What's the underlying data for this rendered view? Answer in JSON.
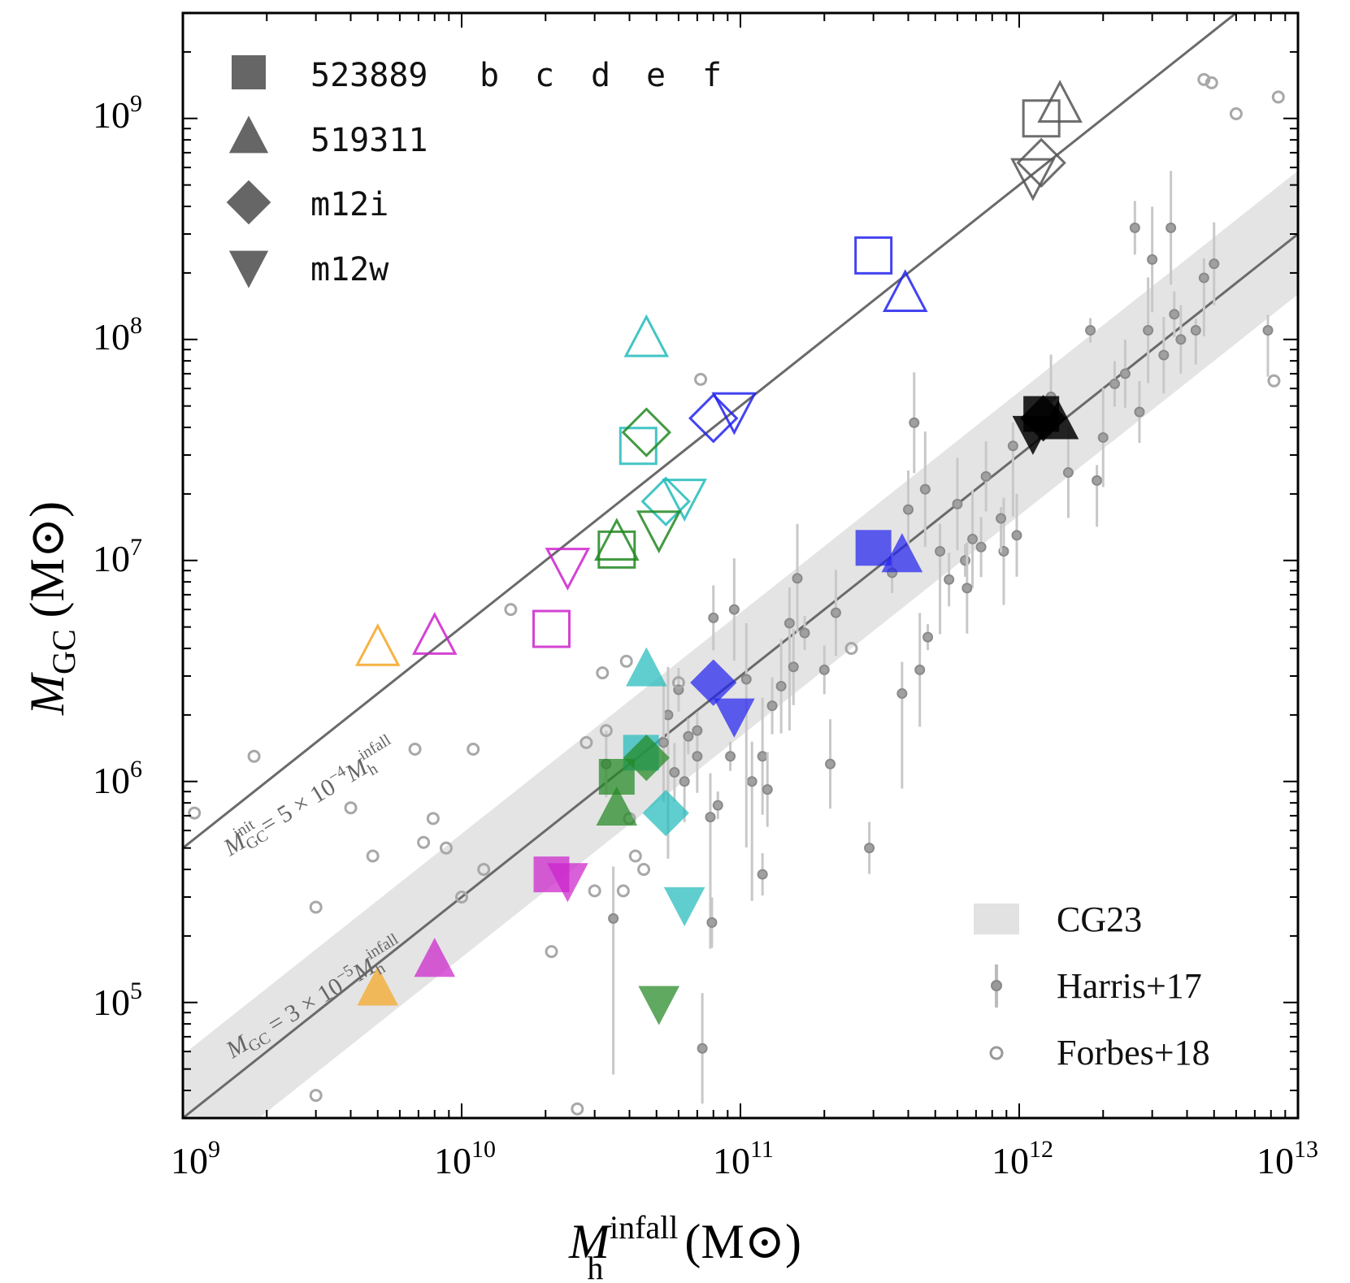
{
  "chart_data": {
    "type": "scatter",
    "xscale": "log",
    "yscale": "log",
    "xlim": [
      1000000000.0,
      10000000000000.0
    ],
    "ylim": [
      30000.0,
      3000000000.0
    ],
    "xlabel": {
      "main": "M",
      "sup": "infall",
      "sub": "h",
      "unit": "(M⊙)"
    },
    "ylabel": {
      "main": "M",
      "sub": "GC",
      "unit": "(M⊙)"
    },
    "x_ticks": [
      {
        "value": 1000000000.0,
        "base": "10",
        "exp": "9"
      },
      {
        "value": 10000000000.0,
        "base": "10",
        "exp": "10"
      },
      {
        "value": 100000000000.0,
        "base": "10",
        "exp": "11"
      },
      {
        "value": 1000000000000.0,
        "base": "10",
        "exp": "12"
      },
      {
        "value": 10000000000000.0,
        "base": "10",
        "exp": "13"
      }
    ],
    "y_ticks": [
      {
        "value": 100000.0,
        "base": "10",
        "exp": "5"
      },
      {
        "value": 1000000.0,
        "base": "10",
        "exp": "6"
      },
      {
        "value": 10000000.0,
        "base": "10",
        "exp": "7"
      },
      {
        "value": 100000000.0,
        "base": "10",
        "exp": "8"
      },
      {
        "value": 1000000000.0,
        "base": "10",
        "exp": "9"
      }
    ],
    "relations": [
      {
        "name": "initial",
        "coefficient": 0.0005,
        "label": {
          "lhs": "M",
          "lhs_sub": "GC",
          "lhs_sup": "init",
          "rhs": " = 5 × 10",
          "exp": "−4",
          "var": "M",
          "var_sub": "h",
          "var_sup": "infall"
        }
      },
      {
        "name": "present",
        "coefficient": 3e-05,
        "label": {
          "lhs": "M",
          "lhs_sub": "GC",
          "lhs_sup": "",
          "rhs": " = 3 × 10",
          "exp": "−5",
          "var": "M",
          "var_sub": "h",
          "var_sup": "infall"
        }
      }
    ],
    "band": {
      "name": "CG23",
      "upper_coefficient": 5.8e-05,
      "lower_coefficient": 1.6e-05
    },
    "colors": {
      "a": "#555555",
      "b": "#2222ee",
      "c": "#22bbbb",
      "d": "#228822",
      "e": "#cc22cc",
      "f": "#f5a623",
      "main": "#000000"
    },
    "points": [
      {
        "halo": "523889",
        "sat": "main",
        "shape": "square",
        "state": "initial",
        "x": 1200000000000.0,
        "y": 1000000000.0
      },
      {
        "halo": "519311",
        "sat": "main",
        "shape": "triangle",
        "state": "initial",
        "x": 1400000000000.0,
        "y": 1150000000.0
      },
      {
        "halo": "m12i",
        "sat": "main",
        "shape": "diamond",
        "state": "initial",
        "x": 1200000000000.0,
        "y": 630000000.0
      },
      {
        "halo": "m12w",
        "sat": "main",
        "shape": "invtriangle",
        "state": "initial",
        "x": 1120000000000.0,
        "y": 550000000.0
      },
      {
        "halo": "523889",
        "sat": "b",
        "shape": "square",
        "state": "initial",
        "x": 300000000000.0,
        "y": 240000000.0
      },
      {
        "halo": "519311",
        "sat": "b",
        "shape": "triangle",
        "state": "initial",
        "x": 390000000000.0,
        "y": 160000000.0
      },
      {
        "halo": "m12i",
        "sat": "b",
        "shape": "diamond",
        "state": "initial",
        "x": 80000000000.0,
        "y": 44000000.0
      },
      {
        "halo": "m12w",
        "sat": "b",
        "shape": "invtriangle",
        "state": "initial",
        "x": 95000000000.0,
        "y": 48000000.0
      },
      {
        "halo": "523889",
        "sat": "c",
        "shape": "square",
        "state": "initial",
        "x": 43000000000.0,
        "y": 33000000.0
      },
      {
        "halo": "519311",
        "sat": "c",
        "shape": "triangle",
        "state": "initial",
        "x": 46000000000.0,
        "y": 100000000.0
      },
      {
        "halo": "m12i",
        "sat": "c",
        "shape": "diamond",
        "state": "initial",
        "x": 54000000000.0,
        "y": 18500000.0
      },
      {
        "halo": "m12w",
        "sat": "c",
        "shape": "invtriangle",
        "state": "initial",
        "x": 63000000000.0,
        "y": 19500000.0
      },
      {
        "halo": "523889",
        "sat": "d",
        "shape": "square",
        "state": "initial",
        "x": 36000000000.0,
        "y": 11200000.0
      },
      {
        "halo": "519311",
        "sat": "d",
        "shape": "triangle",
        "state": "initial",
        "x": 36000000000.0,
        "y": 12000000.0
      },
      {
        "halo": "m12i",
        "sat": "d",
        "shape": "diamond",
        "state": "initial",
        "x": 46000000000.0,
        "y": 38000000.0
      },
      {
        "halo": "m12w",
        "sat": "d",
        "shape": "invtriangle",
        "state": "initial",
        "x": 51000000000.0,
        "y": 14000000.0
      },
      {
        "halo": "523889",
        "sat": "e",
        "shape": "square",
        "state": "initial",
        "x": 21000000000.0,
        "y": 4900000.0
      },
      {
        "halo": "519311",
        "sat": "e",
        "shape": "triangle",
        "state": "initial",
        "x": 8000000000.0,
        "y": 4500000.0
      },
      {
        "halo": "m12w",
        "sat": "e",
        "shape": "invtriangle",
        "state": "initial",
        "x": 24000000000.0,
        "y": 9500000.0
      },
      {
        "halo": "519311",
        "sat": "f",
        "shape": "triangle",
        "state": "initial",
        "x": 5000000000.0,
        "y": 4000000.0
      },
      {
        "halo": "523889",
        "sat": "main",
        "shape": "square",
        "state": "present",
        "x": 1200000000000.0,
        "y": 46000000.0
      },
      {
        "halo": "519311",
        "sat": "main",
        "shape": "triangle",
        "state": "present",
        "x": 1380000000000.0,
        "y": 42000000.0
      },
      {
        "halo": "m12i",
        "sat": "main",
        "shape": "diamond",
        "state": "present",
        "x": 1220000000000.0,
        "y": 44000000.0
      },
      {
        "halo": "m12w",
        "sat": "main",
        "shape": "invtriangle",
        "state": "present",
        "x": 1120000000000.0,
        "y": 38000000.0
      },
      {
        "halo": "523889",
        "sat": "b",
        "shape": "square",
        "state": "present",
        "x": 300000000000.0,
        "y": 11400000.0
      },
      {
        "halo": "519311",
        "sat": "b",
        "shape": "triangle",
        "state": "present",
        "x": 380000000000.0,
        "y": 10500000.0
      },
      {
        "halo": "m12i",
        "sat": "b",
        "shape": "diamond",
        "state": "present",
        "x": 80000000000.0,
        "y": 2800000.0
      },
      {
        "halo": "m12w",
        "sat": "b",
        "shape": "invtriangle",
        "state": "present",
        "x": 95000000000.0,
        "y": 2000000.0
      },
      {
        "halo": "523889",
        "sat": "c",
        "shape": "square",
        "state": "present",
        "x": 44000000000.0,
        "y": 1350000.0
      },
      {
        "halo": "519311",
        "sat": "c",
        "shape": "triangle",
        "state": "present",
        "x": 46000000000.0,
        "y": 3200000.0
      },
      {
        "halo": "m12i",
        "sat": "c",
        "shape": "diamond",
        "state": "present",
        "x": 54000000000.0,
        "y": 720000.0
      },
      {
        "halo": "m12w",
        "sat": "c",
        "shape": "invtriangle",
        "state": "present",
        "x": 63000000000.0,
        "y": 280000.0
      },
      {
        "halo": "523889",
        "sat": "d",
        "shape": "square",
        "state": "present",
        "x": 36000000000.0,
        "y": 1050000.0
      },
      {
        "halo": "519311",
        "sat": "d",
        "shape": "triangle",
        "state": "present",
        "x": 36000000000.0,
        "y": 750000.0
      },
      {
        "halo": "m12i",
        "sat": "d",
        "shape": "diamond",
        "state": "present",
        "x": 46000000000.0,
        "y": 1280000.0
      },
      {
        "halo": "m12w",
        "sat": "d",
        "shape": "invtriangle",
        "state": "present",
        "x": 51000000000.0,
        "y": 100000.0
      },
      {
        "halo": "523889",
        "sat": "e",
        "shape": "square",
        "state": "present",
        "x": 21000000000.0,
        "y": 380000.0
      },
      {
        "halo": "519311",
        "sat": "e",
        "shape": "triangle",
        "state": "present",
        "x": 8000000000.0,
        "y": 155000.0
      },
      {
        "halo": "m12w",
        "sat": "e",
        "shape": "invtriangle",
        "state": "present",
        "x": 24000000000.0,
        "y": 360000.0
      },
      {
        "halo": "519311",
        "sat": "f",
        "shape": "triangle",
        "state": "present",
        "x": 5000000000.0,
        "y": 115000.0
      }
    ],
    "harris17": [
      [
        4300000000000.0,
        110000000.0
      ],
      [
        5000000000000.0,
        220000000.0
      ],
      [
        3600000000000.0,
        130000000.0
      ],
      [
        3000000000000.0,
        230000000.0
      ],
      [
        2400000000000.0,
        70000000.0
      ],
      [
        1900000000000.0,
        23000000.0
      ],
      [
        1500000000000.0,
        25000000.0
      ],
      [
        2600000000000.0,
        320000000.0
      ],
      [
        3500000000000.0,
        320000000.0
      ],
      [
        3300000000000.0,
        85000000.0
      ],
      [
        4600000000000.0,
        190000000.0
      ],
      [
        2000000000000.0,
        36000000.0
      ],
      [
        2700000000000.0,
        47000000.0
      ],
      [
        1800000000000.0,
        110000000.0
      ],
      [
        1300000000000.0,
        55000000.0
      ],
      [
        950000000000.0,
        33000000.0
      ],
      [
        880000000000.0,
        11000000.0
      ],
      [
        760000000000.0,
        24000000.0
      ],
      [
        640000000000.0,
        10000000.0
      ],
      [
        600000000000.0,
        18000000.0
      ],
      [
        520000000000.0,
        11000000.0
      ],
      [
        460000000000.0,
        21000000.0
      ],
      [
        400000000000.0,
        17000000.0
      ],
      [
        350000000000.0,
        8800000.0
      ],
      [
        420000000000.0,
        42000000.0
      ],
      [
        380000000000.0,
        2500000.0
      ],
      [
        470000000000.0,
        4500000.0
      ],
      [
        220000000000.0,
        5800000.0
      ],
      [
        200000000000.0,
        3200000.0
      ],
      [
        160000000000.0,
        8300000.0
      ],
      [
        150000000000.0,
        5200000.0
      ],
      [
        170000000000.0,
        4700000.0
      ],
      [
        140000000000.0,
        2700000.0
      ],
      [
        130000000000.0,
        2200000.0
      ],
      [
        120000000000.0,
        1300000.0
      ],
      [
        110000000000.0,
        1000000.0
      ],
      [
        120000000000.0,
        380000.0
      ],
      [
        95000000000.0,
        6000000.0
      ],
      [
        80000000000.0,
        5500000.0
      ],
      [
        83000000000.0,
        780000.0
      ],
      [
        78000000000.0,
        690000.0
      ],
      [
        79000000000.0,
        230000.0
      ],
      [
        73000000000.0,
        62000.0
      ],
      [
        70000000000.0,
        1300000.0
      ],
      [
        65000000000.0,
        1600000.0
      ],
      [
        55000000000.0,
        2000000.0
      ],
      [
        58000000000.0,
        1100000.0
      ],
      [
        53000000000.0,
        1500000.0
      ],
      [
        63000000000.0,
        1000000.0
      ],
      [
        60000000000.0,
        2600000.0
      ],
      [
        35000000000.0,
        240000.0
      ],
      [
        33000000000.0,
        1200000.0
      ],
      [
        92000000000.0,
        1300000.0
      ],
      [
        210000000000.0,
        1200000.0
      ],
      [
        290000000000.0,
        500000.0
      ],
      [
        105000000000.0,
        2900000.0
      ],
      [
        125000000000.0,
        920000.0
      ],
      [
        70000000000.0,
        1700000.0
      ],
      [
        680000000000.0,
        12500000.0
      ],
      [
        730000000000.0,
        11500000.0
      ],
      [
        860000000000.0,
        15500000.0
      ],
      [
        980000000000.0,
        13000000.0
      ],
      [
        2200000000000.0,
        63000000.0
      ],
      [
        2900000000000.0,
        110000000.0
      ],
      [
        3800000000000.0,
        100000000.0
      ],
      [
        7800000000000.0,
        110000000.0
      ],
      [
        650000000000.0,
        7500000.0
      ],
      [
        560000000000.0,
        8200000.0
      ],
      [
        440000000000.0,
        3200000.0
      ],
      [
        155000000000.0,
        3300000.0
      ]
    ],
    "forbes18": [
      [
        1100000000.0,
        720000.0
      ],
      [
        1800000000.0,
        1300000.0
      ],
      [
        3000000000.0,
        270000.0
      ],
      [
        3000000000.0,
        38000.0
      ],
      [
        4000000000.0,
        760000.0
      ],
      [
        4800000000.0,
        460000.0
      ],
      [
        6800000000.0,
        1400000.0
      ],
      [
        7300000000.0,
        530000.0
      ],
      [
        7900000000.0,
        680000.0
      ],
      [
        8800000000.0,
        500000.0
      ],
      [
        10000000000.0,
        300000.0
      ],
      [
        11000000000.0,
        1400000.0
      ],
      [
        12000000000.0,
        400000.0
      ],
      [
        15000000000.0,
        6000000.0
      ],
      [
        21000000000.0,
        170000.0
      ],
      [
        26000000000.0,
        33000.0
      ],
      [
        28000000000.0,
        1500000.0
      ],
      [
        30000000000.0,
        320000.0
      ],
      [
        32000000000.0,
        3100000.0
      ],
      [
        38000000000.0,
        320000.0
      ],
      [
        39000000000.0,
        3500000.0
      ],
      [
        42000000000.0,
        460000.0
      ],
      [
        45000000000.0,
        400000.0
      ],
      [
        40000000000.0,
        680000.0
      ],
      [
        60000000000.0,
        2800000.0
      ],
      [
        250000000000.0,
        4000000.0
      ],
      [
        33000000000.0,
        1700000.0
      ],
      [
        4600000000000.0,
        1500000000.0
      ],
      [
        4900000000000.0,
        1450000000.0
      ],
      [
        6000000000000.0,
        1050000000.0
      ],
      [
        8500000000000.0,
        1250000000.0
      ],
      [
        8200000000000.0,
        65000000.0
      ],
      [
        72000000000.0,
        66000000.0
      ]
    ],
    "legend_halos": [
      {
        "shape": "square",
        "label": "523889"
      },
      {
        "shape": "triangle",
        "label": "519311"
      },
      {
        "shape": "diamond",
        "label": "m12i"
      },
      {
        "shape": "invtriangle",
        "label": "m12w"
      }
    ],
    "legend_letters": [
      {
        "label": "b",
        "color": "#2222ee"
      },
      {
        "label": "c",
        "color": "#22bbbb"
      },
      {
        "label": "d",
        "color": "#228822"
      },
      {
        "label": "e",
        "color": "#cc22cc"
      },
      {
        "label": "f",
        "color": "#f5a623"
      }
    ],
    "legend_data": [
      {
        "kind": "band",
        "label": "CG23"
      },
      {
        "kind": "errorbar",
        "label": "Harris+17"
      },
      {
        "kind": "opencircle",
        "label": "Forbes+18"
      }
    ]
  }
}
